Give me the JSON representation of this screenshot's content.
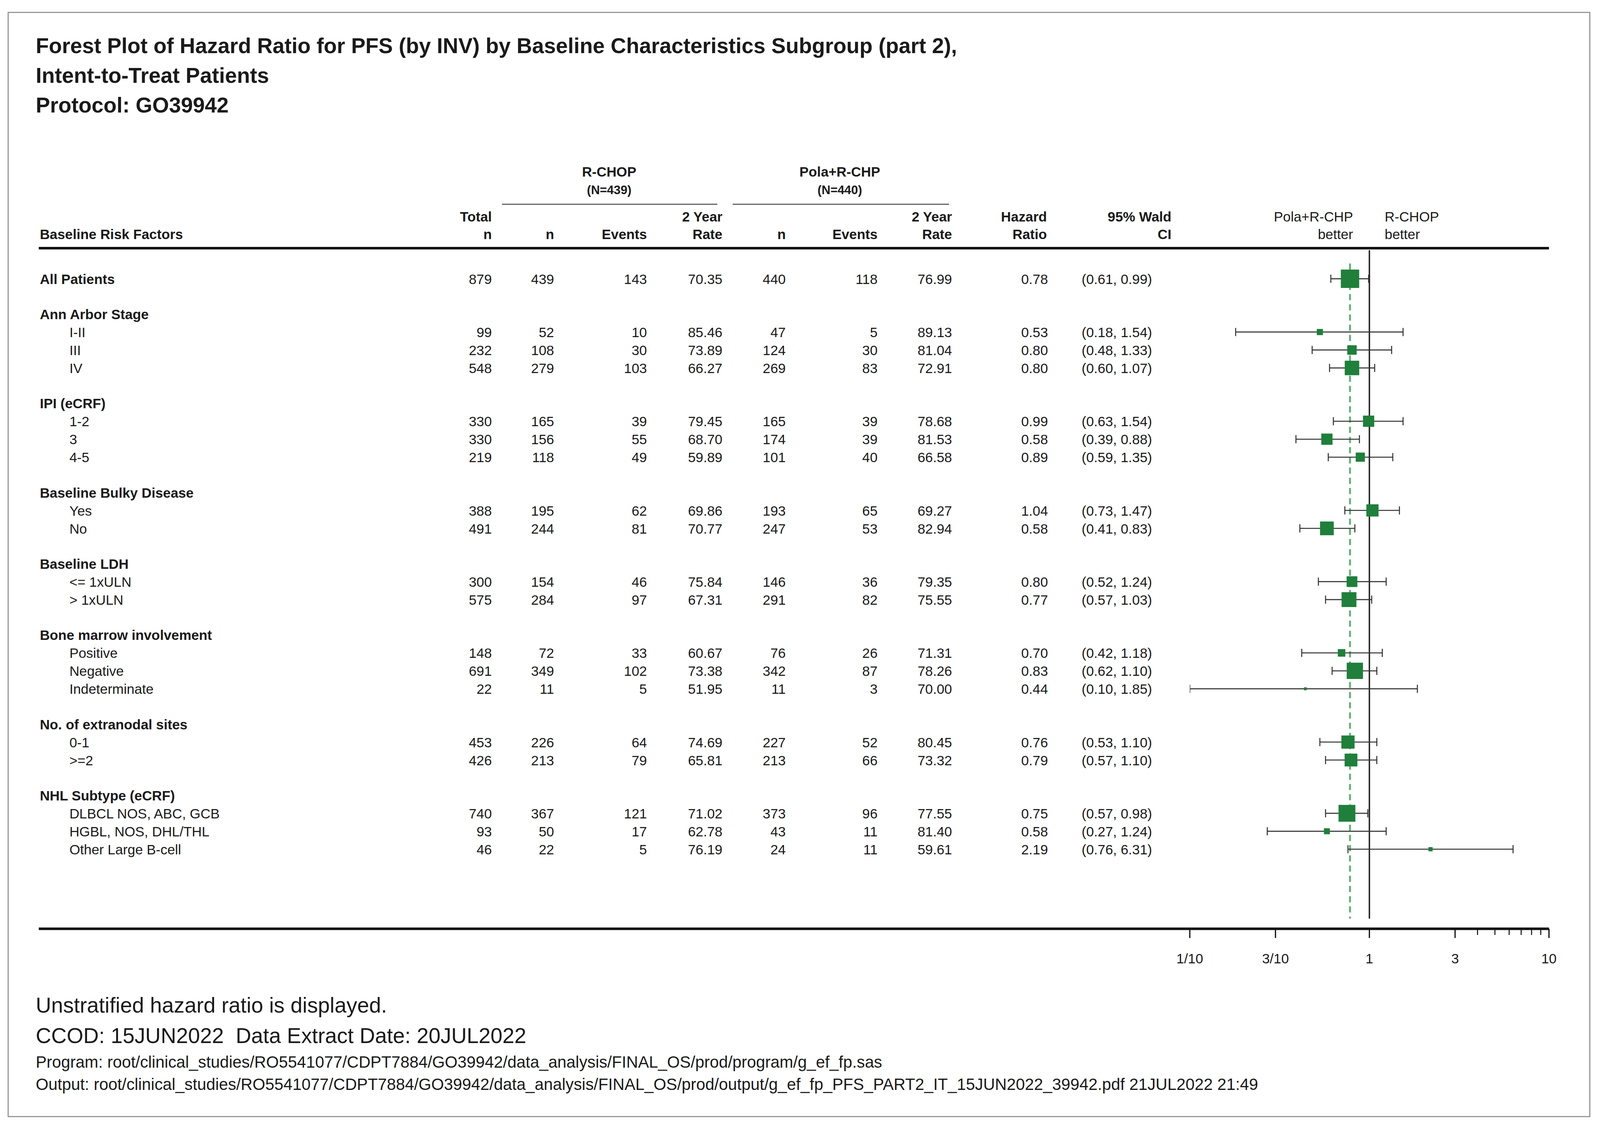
{
  "chart_data": {
    "type": "forest",
    "title": [
      "Forest Plot of Hazard Ratio for PFS (by INV) by Baseline Characteristics Subgroup (part 2),",
      "Intent-to-Treat Patients",
      "Protocol: GO39942"
    ],
    "log": "x",
    "xlim": [
      0.1,
      10
    ],
    "xticks": [
      {
        "value": 0.1,
        "label": "1/10"
      },
      {
        "value": 0.3,
        "label": "3/10"
      },
      1,
      3,
      10
    ],
    "minor_xticks": [
      4,
      5,
      6,
      7,
      8,
      9
    ],
    "reference_line": 1,
    "color": "#1f7f3b",
    "headers": {
      "risk_factors": "Baseline Risk Factors",
      "total": [
        "Total",
        "n"
      ],
      "arm_n": "n",
      "arm_events": "Events",
      "arm_rate": [
        "2 Year",
        "Rate"
      ],
      "hazard_ratio": [
        "Hazard",
        "Ratio"
      ],
      "ci": [
        "95% Wald",
        "CI"
      ]
    },
    "arms": [
      {
        "name": "R-CHOP",
        "n_label": "(N=439)"
      },
      {
        "name": "Pola+R-CHP",
        "n_label": "(N=440)"
      }
    ],
    "direction_labels": [
      [
        "Pola+R-CHP",
        "better"
      ],
      [
        "R-CHOP",
        "better"
      ]
    ],
    "overall": {
      "label": "All Patients",
      "total_n": 879,
      "rchop_n": 439,
      "rchop_events": 143,
      "rchop_rate": 70.35,
      "rchop_rate_label": "70.35",
      "pola_n": 440,
      "pola_events": 118,
      "pola_rate": 76.99,
      "pola_rate_label": "76.99",
      "hr": 0.78,
      "hr_label": "0.78",
      "ci_lower": 0.61,
      "ci_upper": 0.99,
      "ci_label": "(0.61, 0.99)"
    },
    "groups": [
      {
        "name": "Ann Arbor Stage",
        "rows": [
          {
            "label": "I-II",
            "total_n": 99,
            "rchop_n": 52,
            "rchop_events": 10,
            "rchop_rate": 85.46,
            "rchop_rate_label": "85.46",
            "pola_n": 47,
            "pola_events": 5,
            "pola_rate": 89.13,
            "pola_rate_label": "89.13",
            "hr": 0.53,
            "hr_label": "0.53",
            "ci_lower": 0.18,
            "ci_upper": 1.54,
            "ci_label": "(0.18, 1.54)"
          },
          {
            "label": "III",
            "total_n": 232,
            "rchop_n": 108,
            "rchop_events": 30,
            "rchop_rate": 73.89,
            "rchop_rate_label": "73.89",
            "pola_n": 124,
            "pola_events": 30,
            "pola_rate": 81.04,
            "pola_rate_label": "81.04",
            "hr": 0.8,
            "hr_label": "0.80",
            "ci_lower": 0.48,
            "ci_upper": 1.33,
            "ci_label": "(0.48, 1.33)"
          },
          {
            "label": "IV",
            "total_n": 548,
            "rchop_n": 279,
            "rchop_events": 103,
            "rchop_rate": 66.27,
            "rchop_rate_label": "66.27",
            "pola_n": 269,
            "pola_events": 83,
            "pola_rate": 72.91,
            "pola_rate_label": "72.91",
            "hr": 0.8,
            "hr_label": "0.80",
            "ci_lower": 0.6,
            "ci_upper": 1.07,
            "ci_label": "(0.60, 1.07)"
          }
        ]
      },
      {
        "name": "IPI (eCRF)",
        "rows": [
          {
            "label": "1-2",
            "total_n": 330,
            "rchop_n": 165,
            "rchop_events": 39,
            "rchop_rate": 79.45,
            "rchop_rate_label": "79.45",
            "pola_n": 165,
            "pola_events": 39,
            "pola_rate": 78.68,
            "pola_rate_label": "78.68",
            "hr": 0.99,
            "hr_label": "0.99",
            "ci_lower": 0.63,
            "ci_upper": 1.54,
            "ci_label": "(0.63, 1.54)"
          },
          {
            "label": "3",
            "total_n": 330,
            "rchop_n": 156,
            "rchop_events": 55,
            "rchop_rate": 68.7,
            "rchop_rate_label": "68.70",
            "pola_n": 174,
            "pola_events": 39,
            "pola_rate": 81.53,
            "pola_rate_label": "81.53",
            "hr": 0.58,
            "hr_label": "0.58",
            "ci_lower": 0.39,
            "ci_upper": 0.88,
            "ci_label": "(0.39, 0.88)"
          },
          {
            "label": "4-5",
            "total_n": 219,
            "rchop_n": 118,
            "rchop_events": 49,
            "rchop_rate": 59.89,
            "rchop_rate_label": "59.89",
            "pola_n": 101,
            "pola_events": 40,
            "pola_rate": 66.58,
            "pola_rate_label": "66.58",
            "hr": 0.89,
            "hr_label": "0.89",
            "ci_lower": 0.59,
            "ci_upper": 1.35,
            "ci_label": "(0.59, 1.35)"
          }
        ]
      },
      {
        "name": "Baseline Bulky Disease",
        "rows": [
          {
            "label": "Yes",
            "total_n": 388,
            "rchop_n": 195,
            "rchop_events": 62,
            "rchop_rate": 69.86,
            "rchop_rate_label": "69.86",
            "pola_n": 193,
            "pola_events": 65,
            "pola_rate": 69.27,
            "pola_rate_label": "69.27",
            "hr": 1.04,
            "hr_label": "1.04",
            "ci_lower": 0.73,
            "ci_upper": 1.47,
            "ci_label": "(0.73, 1.47)"
          },
          {
            "label": "No",
            "total_n": 491,
            "rchop_n": 244,
            "rchop_events": 81,
            "rchop_rate": 70.77,
            "rchop_rate_label": "70.77",
            "pola_n": 247,
            "pola_events": 53,
            "pola_rate": 82.94,
            "pola_rate_label": "82.94",
            "hr": 0.58,
            "hr_label": "0.58",
            "ci_lower": 0.41,
            "ci_upper": 0.83,
            "ci_label": "(0.41, 0.83)"
          }
        ]
      },
      {
        "name": "Baseline LDH",
        "rows": [
          {
            "label": "<= 1xULN",
            "total_n": 300,
            "rchop_n": 154,
            "rchop_events": 46,
            "rchop_rate": 75.84,
            "rchop_rate_label": "75.84",
            "pola_n": 146,
            "pola_events": 36,
            "pola_rate": 79.35,
            "pola_rate_label": "79.35",
            "hr": 0.8,
            "hr_label": "0.80",
            "ci_lower": 0.52,
            "ci_upper": 1.24,
            "ci_label": "(0.52, 1.24)"
          },
          {
            "label": "> 1xULN",
            "total_n": 575,
            "rchop_n": 284,
            "rchop_events": 97,
            "rchop_rate": 67.31,
            "rchop_rate_label": "67.31",
            "pola_n": 291,
            "pola_events": 82,
            "pola_rate": 75.55,
            "pola_rate_label": "75.55",
            "hr": 0.77,
            "hr_label": "0.77",
            "ci_lower": 0.57,
            "ci_upper": 1.03,
            "ci_label": "(0.57, 1.03)"
          }
        ]
      },
      {
        "name": "Bone marrow involvement",
        "rows": [
          {
            "label": "Positive",
            "total_n": 148,
            "rchop_n": 72,
            "rchop_events": 33,
            "rchop_rate": 60.67,
            "rchop_rate_label": "60.67",
            "pola_n": 76,
            "pola_events": 26,
            "pola_rate": 71.31,
            "pola_rate_label": "71.31",
            "hr": 0.7,
            "hr_label": "0.70",
            "ci_lower": 0.42,
            "ci_upper": 1.18,
            "ci_label": "(0.42, 1.18)"
          },
          {
            "label": "Negative",
            "total_n": 691,
            "rchop_n": 349,
            "rchop_events": 102,
            "rchop_rate": 73.38,
            "rchop_rate_label": "73.38",
            "pola_n": 342,
            "pola_events": 87,
            "pola_rate": 78.26,
            "pola_rate_label": "78.26",
            "hr": 0.83,
            "hr_label": "0.83",
            "ci_lower": 0.62,
            "ci_upper": 1.1,
            "ci_label": "(0.62, 1.10)"
          },
          {
            "label": "Indeterminate",
            "total_n": 22,
            "rchop_n": 11,
            "rchop_events": 5,
            "rchop_rate": 51.95,
            "rchop_rate_label": "51.95",
            "pola_n": 11,
            "pola_events": 3,
            "pola_rate": 70,
            "pola_rate_label": "70.00",
            "hr": 0.44,
            "hr_label": "0.44",
            "ci_lower": 0.1,
            "ci_upper": 1.85,
            "ci_label": "(0.10, 1.85)"
          }
        ]
      },
      {
        "name": "No. of extranodal sites",
        "rows": [
          {
            "label": "0-1",
            "total_n": 453,
            "rchop_n": 226,
            "rchop_events": 64,
            "rchop_rate": 74.69,
            "rchop_rate_label": "74.69",
            "pola_n": 227,
            "pola_events": 52,
            "pola_rate": 80.45,
            "pola_rate_label": "80.45",
            "hr": 0.76,
            "hr_label": "0.76",
            "ci_lower": 0.53,
            "ci_upper": 1.1,
            "ci_label": "(0.53, 1.10)"
          },
          {
            "label": ">=2",
            "total_n": 426,
            "rchop_n": 213,
            "rchop_events": 79,
            "rchop_rate": 65.81,
            "rchop_rate_label": "65.81",
            "pola_n": 213,
            "pola_events": 66,
            "pola_rate": 73.32,
            "pola_rate_label": "73.32",
            "hr": 0.79,
            "hr_label": "0.79",
            "ci_lower": 0.57,
            "ci_upper": 1.1,
            "ci_label": "(0.57, 1.10)"
          }
        ]
      },
      {
        "name": "NHL Subtype (eCRF)",
        "rows": [
          {
            "label": "DLBCL NOS, ABC, GCB",
            "total_n": 740,
            "rchop_n": 367,
            "rchop_events": 121,
            "rchop_rate": 71.02,
            "rchop_rate_label": "71.02",
            "pola_n": 373,
            "pola_events": 96,
            "pola_rate": 77.55,
            "pola_rate_label": "77.55",
            "hr": 0.75,
            "hr_label": "0.75",
            "ci_lower": 0.57,
            "ci_upper": 0.98,
            "ci_label": "(0.57, 0.98)"
          },
          {
            "label": "HGBL, NOS, DHL/THL",
            "total_n": 93,
            "rchop_n": 50,
            "rchop_events": 17,
            "rchop_rate": 62.78,
            "rchop_rate_label": "62.78",
            "pola_n": 43,
            "pola_events": 11,
            "pola_rate": 81.4,
            "pola_rate_label": "81.40",
            "hr": 0.58,
            "hr_label": "0.58",
            "ci_lower": 0.27,
            "ci_upper": 1.24,
            "ci_label": "(0.27, 1.24)"
          },
          {
            "label": "Other Large B-cell",
            "total_n": 46,
            "rchop_n": 22,
            "rchop_events": 5,
            "rchop_rate": 76.19,
            "rchop_rate_label": "76.19",
            "pola_n": 24,
            "pola_events": 11,
            "pola_rate": 59.61,
            "pola_rate_label": "59.61",
            "hr": 2.19,
            "hr_label": "2.19",
            "ci_lower": 0.76,
            "ci_upper": 6.31,
            "ci_label": "(0.76, 6.31)"
          }
        ]
      }
    ],
    "footnotes": [
      "Unstratified hazard ratio is displayed.",
      "CCOD: 15JUN2022  Data Extract Date: 20JUL2022",
      "Program: root/clinical_studies/RO5541077/CDPT7884/GO39942/data_analysis/FINAL_OS/prod/program/g_ef_fp.sas",
      "Output: root/clinical_studies/RO5541077/CDPT7884/GO39942/data_analysis/FINAL_OS/prod/output/g_ef_fp_PFS_PART2_IT_15JUN2022_39942.pdf 21JUL2022 21:49"
    ]
  }
}
